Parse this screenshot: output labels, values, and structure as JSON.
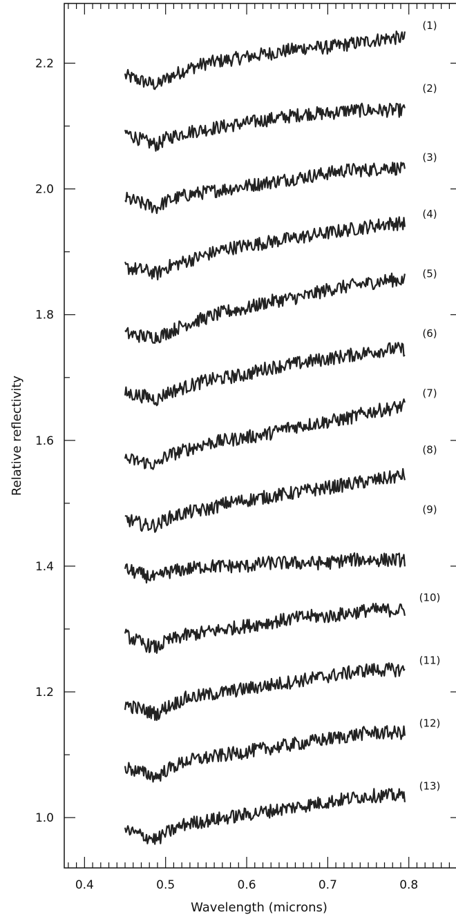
{
  "chart_data": {
    "type": "line",
    "title": "",
    "xlabel": "Wavelength (microns)",
    "ylabel": "Relative reflectivity",
    "xlim": [
      0.375,
      0.865
    ],
    "ylim": [
      0.92,
      2.295
    ],
    "x_ticks": [
      "0.4",
      "0.5",
      "0.6",
      "0.7",
      "0.8"
    ],
    "y_ticks": [
      "1.0",
      "1.2",
      "1.4",
      "1.6",
      "1.8",
      "2.0",
      "2.2"
    ],
    "grid": false,
    "legend": "none",
    "line_color": "#222222",
    "x": [
      0.45,
      0.475,
      0.49,
      0.5,
      0.525,
      0.55,
      0.575,
      0.6,
      0.625,
      0.65,
      0.675,
      0.7,
      0.725,
      0.75,
      0.775,
      0.795
    ],
    "series": [
      {
        "name": "(1)",
        "label_y": 2.26,
        "values": [
          2.18,
          2.17,
          2.165,
          2.175,
          2.19,
          2.2,
          2.205,
          2.21,
          2.215,
          2.22,
          2.225,
          2.225,
          2.23,
          2.235,
          2.24,
          2.24
        ]
      },
      {
        "name": "(2)",
        "label_y": 2.16,
        "values": [
          2.09,
          2.075,
          2.07,
          2.08,
          2.09,
          2.095,
          2.1,
          2.105,
          2.11,
          2.115,
          2.12,
          2.12,
          2.125,
          2.125,
          2.125,
          2.125
        ]
      },
      {
        "name": "(3)",
        "label_y": 2.05,
        "values": [
          1.985,
          1.975,
          1.97,
          1.98,
          1.99,
          1.995,
          2.0,
          2.005,
          2.01,
          2.015,
          2.02,
          2.025,
          2.03,
          2.03,
          2.035,
          2.03
        ]
      },
      {
        "name": "(4)",
        "label_y": 1.96,
        "values": [
          1.875,
          1.87,
          1.865,
          1.875,
          1.885,
          1.895,
          1.905,
          1.91,
          1.915,
          1.92,
          1.925,
          1.93,
          1.935,
          1.94,
          1.945,
          1.945
        ]
      },
      {
        "name": "(5)",
        "label_y": 1.865,
        "values": [
          1.77,
          1.765,
          1.765,
          1.77,
          1.785,
          1.795,
          1.805,
          1.81,
          1.82,
          1.825,
          1.83,
          1.84,
          1.845,
          1.85,
          1.855,
          1.855
        ]
      },
      {
        "name": "(6)",
        "label_y": 1.77,
        "values": [
          1.675,
          1.67,
          1.665,
          1.675,
          1.685,
          1.695,
          1.7,
          1.705,
          1.715,
          1.72,
          1.725,
          1.73,
          1.735,
          1.74,
          1.745,
          1.745
        ]
      },
      {
        "name": "(7)",
        "label_y": 1.675,
        "values": [
          1.57,
          1.565,
          1.56,
          1.575,
          1.585,
          1.595,
          1.6,
          1.605,
          1.61,
          1.62,
          1.625,
          1.63,
          1.635,
          1.645,
          1.65,
          1.655
        ]
      },
      {
        "name": "(8)",
        "label_y": 1.585,
        "values": [
          1.475,
          1.465,
          1.465,
          1.475,
          1.485,
          1.49,
          1.5,
          1.505,
          1.51,
          1.515,
          1.52,
          1.525,
          1.53,
          1.535,
          1.54,
          1.545
        ]
      },
      {
        "name": "(9)",
        "label_y": 1.49,
        "values": [
          1.395,
          1.385,
          1.38,
          1.39,
          1.395,
          1.4,
          1.4,
          1.4,
          1.405,
          1.405,
          1.405,
          1.405,
          1.41,
          1.41,
          1.41,
          1.41
        ]
      },
      {
        "name": "(10)",
        "label_y": 1.35,
        "values": [
          1.29,
          1.275,
          1.27,
          1.28,
          1.29,
          1.295,
          1.3,
          1.305,
          1.31,
          1.315,
          1.32,
          1.32,
          1.325,
          1.33,
          1.33,
          1.33
        ]
      },
      {
        "name": "(11)",
        "label_y": 1.25,
        "values": [
          1.18,
          1.17,
          1.165,
          1.175,
          1.19,
          1.195,
          1.2,
          1.205,
          1.21,
          1.215,
          1.22,
          1.225,
          1.23,
          1.235,
          1.235,
          1.235
        ]
      },
      {
        "name": "(12)",
        "label_y": 1.15,
        "values": [
          1.08,
          1.07,
          1.065,
          1.075,
          1.09,
          1.095,
          1.1,
          1.105,
          1.11,
          1.115,
          1.12,
          1.125,
          1.13,
          1.135,
          1.135,
          1.135
        ]
      },
      {
        "name": "(13)",
        "label_y": 1.05,
        "values": [
          0.98,
          0.97,
          0.965,
          0.975,
          0.99,
          0.995,
          1.0,
          1.005,
          1.01,
          1.015,
          1.02,
          1.025,
          1.03,
          1.035,
          1.035,
          1.035
        ]
      }
    ]
  }
}
